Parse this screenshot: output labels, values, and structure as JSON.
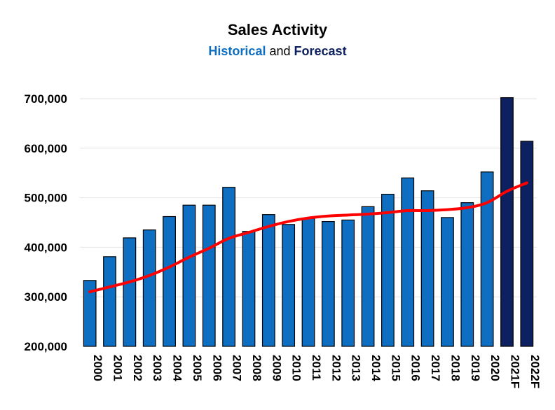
{
  "colors": {
    "historical": "#0E6EC1",
    "forecast": "#0D2060",
    "trend": "#FF0000",
    "grid": "#E6E6E6",
    "bar_outline": "#000000"
  },
  "chart_data": {
    "type": "bar",
    "title": "Sales Activity",
    "subtitle": {
      "historical": "Historical",
      "connector": "and",
      "forecast": "Forecast"
    },
    "ylim": [
      200000,
      700000
    ],
    "yticks": [
      200000,
      300000,
      400000,
      500000,
      600000,
      700000
    ],
    "ytick_labels": [
      "200,000",
      "300,000",
      "400,000",
      "500,000",
      "600,000",
      "700,000"
    ],
    "categories": [
      "2000",
      "2001",
      "2002",
      "2003",
      "2004",
      "2005",
      "2006",
      "2007",
      "2008",
      "2009",
      "2010",
      "2011",
      "2012",
      "2013",
      "2014",
      "2015",
      "2016",
      "2017",
      "2018",
      "2019",
      "2020",
      "2021F",
      "2022F"
    ],
    "series": [
      {
        "kind": "bar",
        "values": [
          333000,
          381000,
          419000,
          435000,
          462000,
          485000,
          485000,
          521000,
          432000,
          466000,
          446000,
          458000,
          452000,
          455000,
          482000,
          507000,
          540000,
          514000,
          460000,
          490000,
          552000,
          702000,
          614000
        ],
        "forecast_flags": [
          false,
          false,
          false,
          false,
          false,
          false,
          false,
          false,
          false,
          false,
          false,
          false,
          false,
          false,
          false,
          false,
          false,
          false,
          false,
          false,
          false,
          true,
          true
        ]
      },
      {
        "kind": "line",
        "values": [
          310000,
          320000,
          330000,
          343000,
          360000,
          380000,
          398000,
          418000,
          430000,
          442000,
          452000,
          459000,
          463000,
          465000,
          467000,
          470000,
          474000,
          474000,
          476000,
          480000,
          490000,
          513000,
          530000
        ]
      }
    ],
    "grid": true,
    "legend": "none"
  }
}
